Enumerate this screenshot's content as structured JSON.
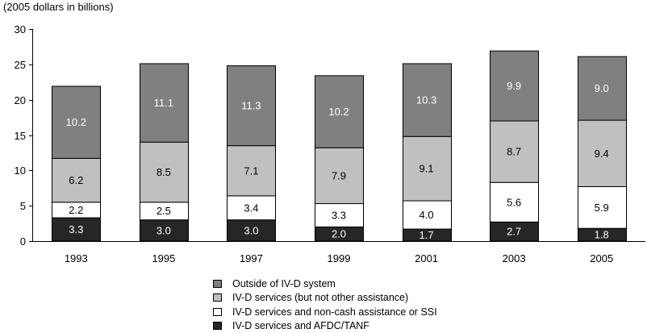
{
  "chart_data": {
    "type": "stacked-bar",
    "unit_label": "(2005 dollars in billions)",
    "categories": [
      "1993",
      "1995",
      "1997",
      "1999",
      "2001",
      "2003",
      "2005"
    ],
    "ylim": [
      0,
      30
    ],
    "yticks": [
      0,
      5,
      10,
      15,
      20,
      25,
      30
    ],
    "ytick_labels": [
      "0",
      "5",
      "10",
      "15",
      "20",
      "25",
      "30"
    ],
    "series": [
      {
        "name": "IV-D services and AFDC/TANF",
        "color": "#262626",
        "values": [
          3.3,
          3.0,
          3.0,
          2.0,
          1.7,
          2.7,
          1.8
        ],
        "labels": [
          "3.3",
          "3.0",
          "3.0",
          "2.0",
          "1.7",
          "2.7",
          "1.8"
        ],
        "label_color": "#ffffff"
      },
      {
        "name": "IV-D services and non-cash assistance or SSI",
        "color": "#ffffff",
        "values": [
          2.2,
          2.5,
          3.4,
          3.3,
          4.0,
          5.6,
          5.9
        ],
        "labels": [
          "2.2",
          "2.5",
          "3.4",
          "3.3",
          "4.0",
          "5.6",
          "5.9"
        ],
        "label_color": "#000000"
      },
      {
        "name": "IV-D services (but not other assistance)",
        "color": "#c0c0c0",
        "values": [
          6.2,
          8.5,
          7.1,
          7.9,
          9.1,
          8.7,
          9.4
        ],
        "labels": [
          "6.2",
          "8.5",
          "7.1",
          "7.9",
          "9.1",
          "8.7",
          "9.4"
        ],
        "label_color": "#000000"
      },
      {
        "name": "Outside of IV-D system",
        "color": "#808080",
        "values": [
          10.2,
          11.1,
          11.3,
          10.2,
          10.3,
          9.9,
          9.0
        ],
        "labels": [
          "10.2",
          "11.1",
          "11.3",
          "10.2",
          "10.3",
          "9.9",
          "9.0"
        ],
        "label_color": "#ffffff"
      }
    ],
    "legend": [
      {
        "name": "Outside of IV-D system",
        "color": "#808080"
      },
      {
        "name": "IV-D services (but not other assistance)",
        "color": "#c0c0c0"
      },
      {
        "name": "IV-D services and non-cash assistance or SSI",
        "color": "#ffffff"
      },
      {
        "name": "IV-D services and AFDC/TANF",
        "color": "#262626"
      }
    ]
  }
}
